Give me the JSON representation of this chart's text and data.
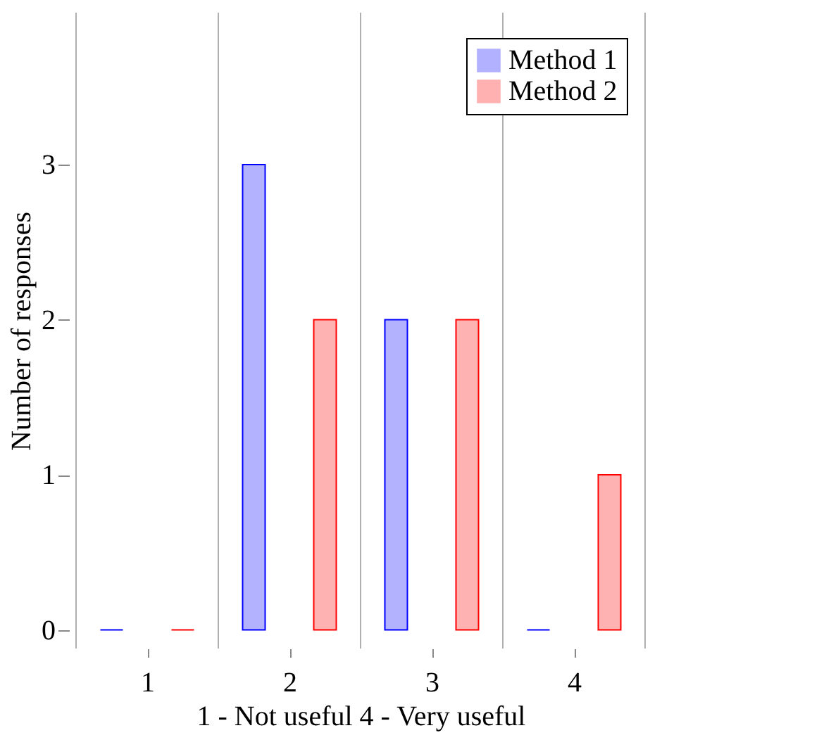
{
  "chart_data": {
    "type": "bar",
    "categories": [
      "1",
      "2",
      "3",
      "4"
    ],
    "series": [
      {
        "name": "Method 1",
        "color": "#0000ff",
        "values": [
          0,
          3,
          2,
          0
        ]
      },
      {
        "name": "Method 2",
        "color": "#ff0000",
        "values": [
          0,
          2,
          2,
          1
        ]
      }
    ],
    "xlabel": "1 - Not useful 4 - Very useful",
    "ylabel": "Number of responses",
    "ylim": [
      -0.12,
      3.98
    ],
    "yticks": [
      0,
      1,
      2,
      3
    ],
    "grid": "x",
    "legend": "top right"
  }
}
